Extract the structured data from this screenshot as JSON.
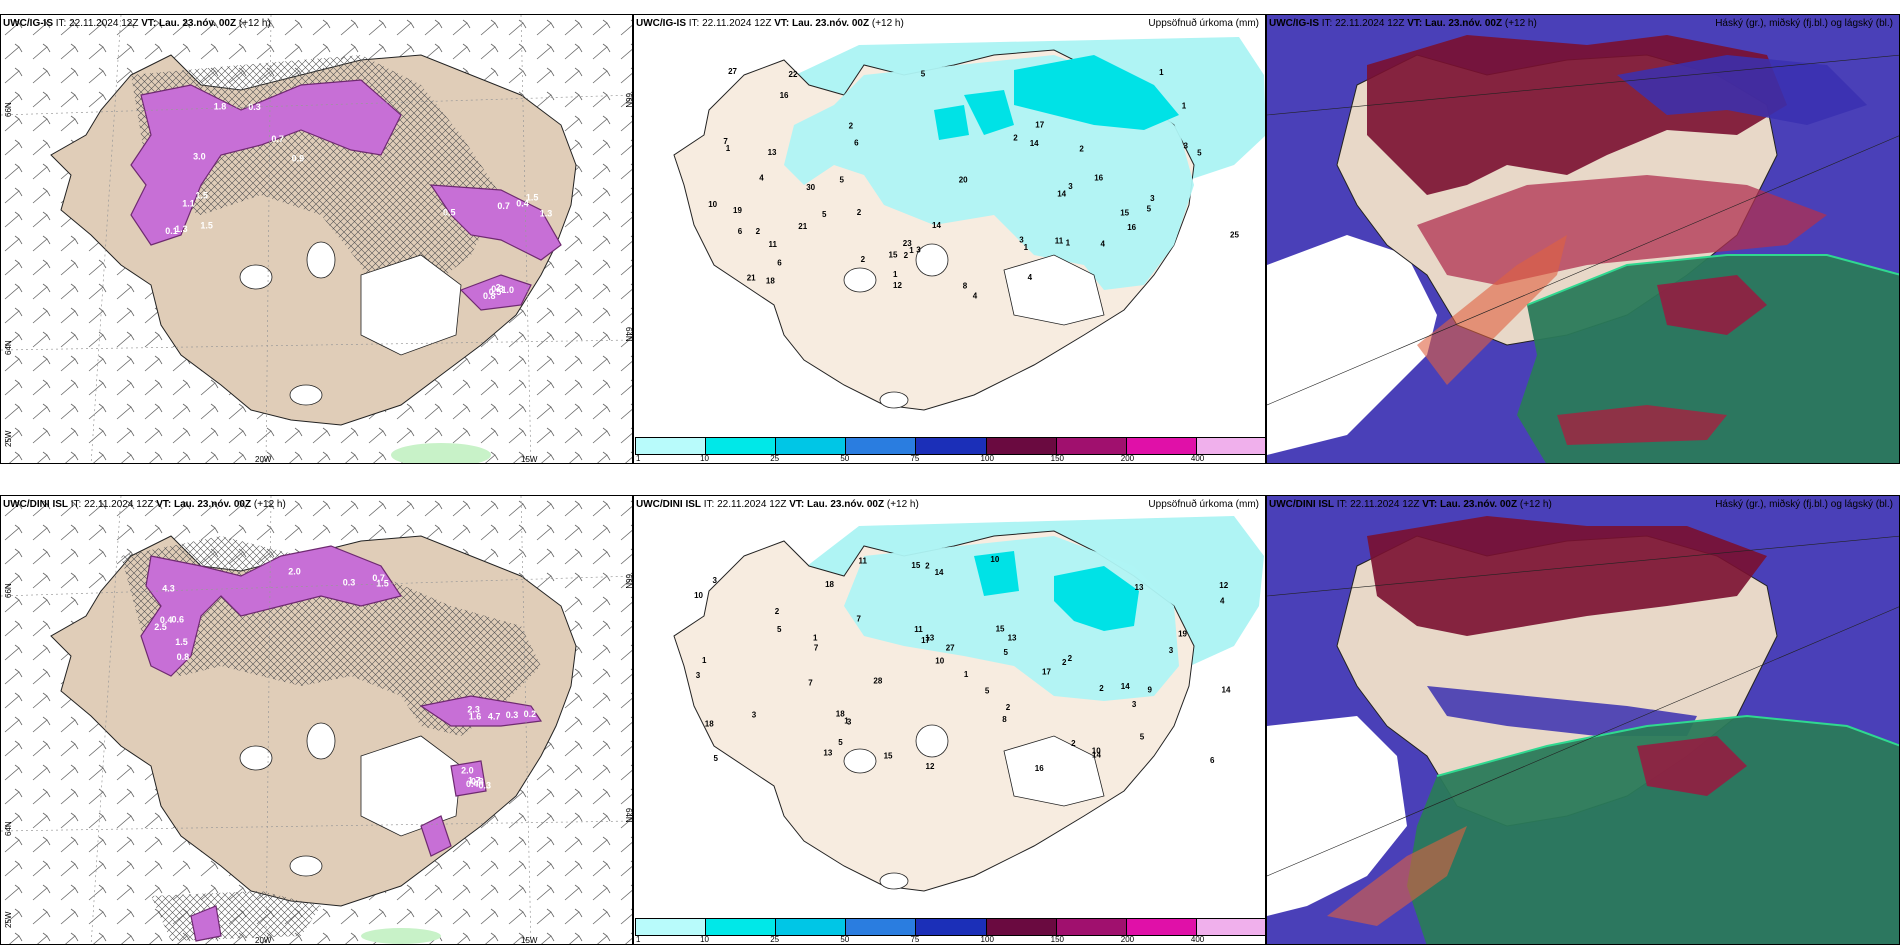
{
  "rows": [
    {
      "model": "UWC/IG-IS",
      "init_label": "IT:",
      "init_value": "22.11.2024 12Z",
      "valid_label": "VT:",
      "valid_value": "Lau. 23.nóv. 00Z",
      "lead": "(+12 h)",
      "wind_axis": {
        "lat_top": "66N",
        "lat_bottom": "64N",
        "lon_left": "25W",
        "lon_mid": "20W",
        "lon_right": "15W"
      },
      "wind_values": [
        "3.0",
        "1.5",
        "0.7",
        "0.5",
        "1.8",
        "1.5",
        "0.4",
        "0.3",
        "0.7",
        "1.1",
        "0.5",
        "2",
        "0.9",
        "1.3",
        "1.5",
        "0.8",
        "0.3",
        "0.1",
        "1.3",
        "1.0"
      ],
      "precip_numbers": [
        "5",
        "5",
        "6",
        "1",
        "4",
        "3",
        "1",
        "4",
        "3",
        "1",
        "2",
        "16",
        "17",
        "18",
        "27",
        "30",
        "20",
        "14",
        "16",
        "10",
        "13",
        "14",
        "15",
        "21",
        "22",
        "21",
        "25",
        "19",
        "16",
        "23",
        "4",
        "5",
        "8",
        "6",
        "2",
        "3",
        "5",
        "11",
        "14",
        "15",
        "12",
        "11",
        "6",
        "7",
        "5",
        "3",
        "2",
        "1",
        "1",
        "1",
        "2",
        "4",
        "3",
        "2",
        "1",
        "2",
        "2"
      ]
    },
    {
      "model": "UWC/DINI ISL",
      "init_label": "IT:",
      "init_value": "22.11.2024 12Z",
      "valid_label": "VT:",
      "valid_value": "Lau. 23.nóv. 00Z",
      "lead": "(+12 h)",
      "wind_axis": {
        "lat_top": "66N",
        "lat_bottom": "64N",
        "lon_left": "25W",
        "lon_mid": "20W",
        "lon_right": "15W"
      },
      "wind_values": [
        "4.3",
        "2.5",
        "2.3",
        "2.0",
        "0.7",
        "1.5",
        "4.7",
        "1.7",
        "2.0",
        "0.8",
        "1.6",
        "0.3",
        "0.3",
        "0.4",
        "0.3",
        "0.8",
        "1.5",
        "0.6",
        "0.2",
        "0.4"
      ],
      "precip_numbers": [
        "7",
        "5",
        "5",
        "3",
        "3",
        "5",
        "4",
        "2",
        "3",
        "1",
        "2",
        "14",
        "16",
        "18",
        "17",
        "15",
        "18",
        "27",
        "28",
        "19",
        "13",
        "13",
        "6",
        "12",
        "14",
        "14",
        "12",
        "11",
        "10",
        "15",
        "13",
        "15",
        "14",
        "10",
        "9",
        "17",
        "10",
        "18",
        "8",
        "7",
        "3",
        "10",
        "13",
        "11",
        "5",
        "3",
        "2",
        "2",
        "1",
        "1",
        "2",
        "2",
        "5",
        "7",
        "3",
        "5",
        "1",
        "2"
      ]
    }
  ],
  "precip_title": "Uppsöfnuð úrkoma (mm)",
  "cloud_title": "Háský (gr.), miðský (fj.bl.) og lágský (bl.)",
  "legend": {
    "ticks": [
      "1",
      "10",
      "25",
      "50",
      "75",
      "100",
      "150",
      "200",
      "400"
    ],
    "colors": [
      "#b8fbfb",
      "#00e8e8",
      "#00c6e6",
      "#2a7de0",
      "#1b2fb8",
      "#6a0a40",
      "#a0106e",
      "#e010a8",
      "#f0b0ec"
    ]
  },
  "colors": {
    "land": "#e0cdb8",
    "land_light": "#f7ece0",
    "precip_light": "#aff4f4",
    "precip_mid": "#00e2e6",
    "wind_precip": "#c76fd6",
    "wind_precip_dark": "#6e2a70",
    "cloud_high": "#7a1030",
    "cloud_mid": "#4a40b8",
    "cloud_low": "#2a7a5a"
  }
}
